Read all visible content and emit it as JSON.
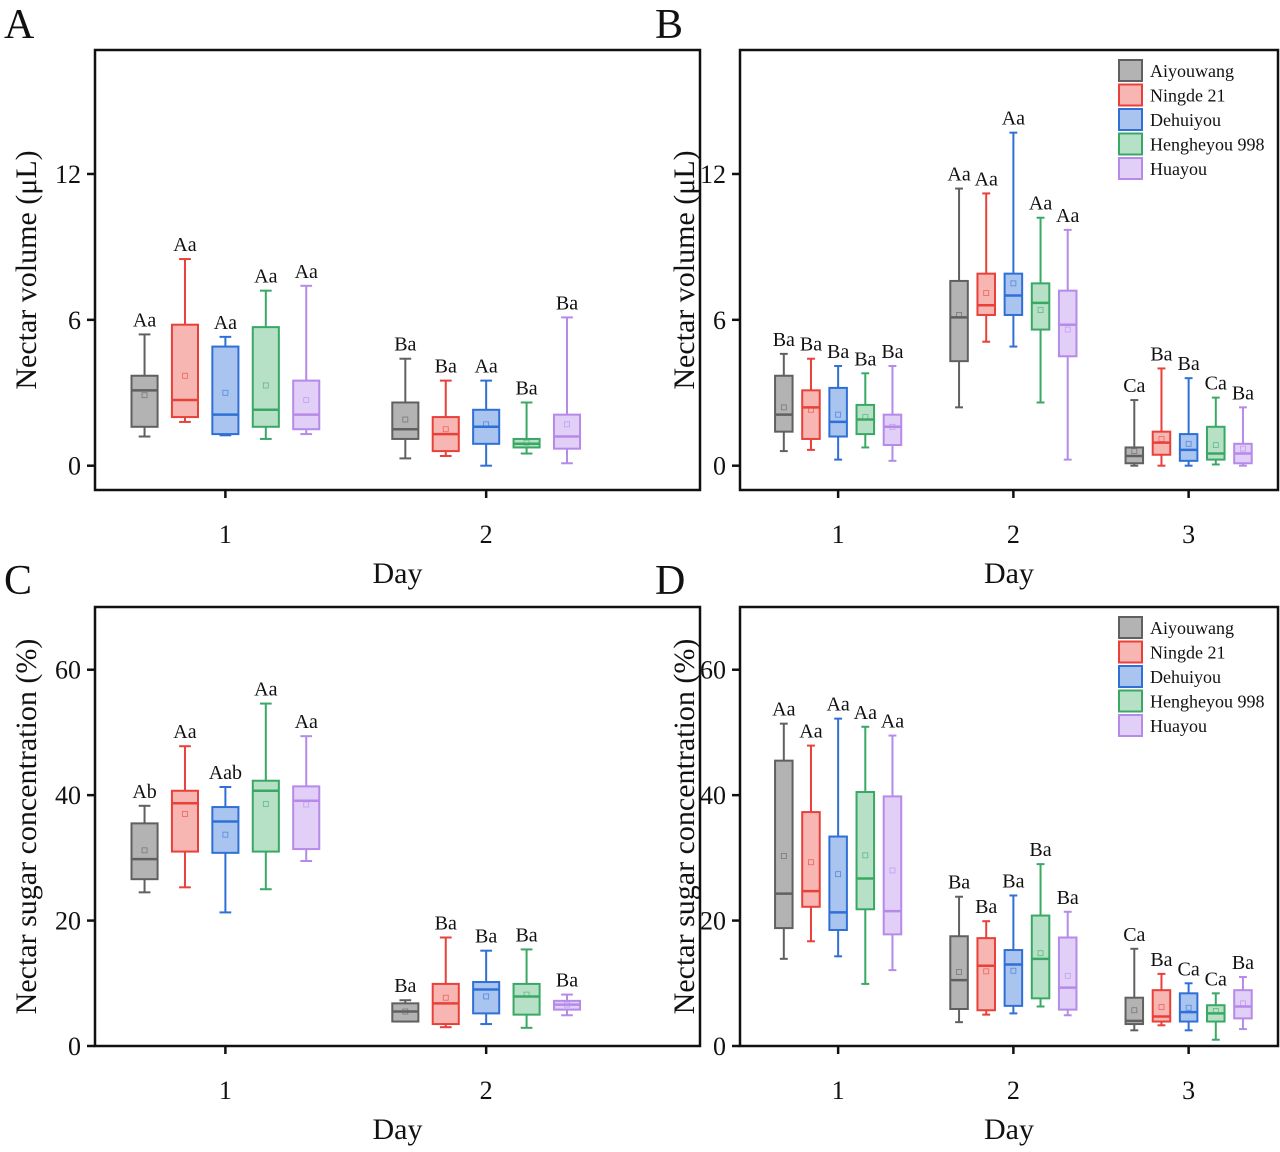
{
  "series_styles": [
    {
      "name": "Aiyouwang",
      "stroke": "#606060",
      "fill": "#b3b3b3"
    },
    {
      "name": "Ningde 21",
      "stroke": "#e8403a",
      "fill": "#f8b6b2"
    },
    {
      "name": "Dehuiyou",
      "stroke": "#2f6fd6",
      "fill": "#a9c5ef"
    },
    {
      "name": "Hengheyou 998",
      "stroke": "#3aa865",
      "fill": "#b7e1c6"
    },
    {
      "name": "Huayou",
      "stroke": "#b58ae8",
      "fill": "#e2cff8"
    }
  ],
  "chart_data": [
    {
      "panel": "A",
      "type": "box",
      "xlabel": "Day",
      "ylabel": "Nectar volume (μL)",
      "categories": [
        "1",
        "2"
      ],
      "xlim": [
        0.5,
        2.82
      ],
      "ylim": [
        -1,
        17.1
      ],
      "yticks": [
        0,
        6,
        12
      ],
      "legend": "none",
      "series": [
        {
          "name": "Aiyouwang",
          "boxes": [
            {
              "min": 1.2,
              "q1": 1.6,
              "median": 3.1,
              "q3": 3.7,
              "max": 5.4,
              "mean": 2.9,
              "letter": "Aa"
            },
            {
              "min": 0.3,
              "q1": 1.1,
              "median": 1.5,
              "q3": 2.6,
              "max": 4.4,
              "mean": 1.9,
              "letter": "Ba"
            }
          ]
        },
        {
          "name": "Ningde 21",
          "boxes": [
            {
              "min": 1.8,
              "q1": 2.0,
              "median": 2.7,
              "q3": 5.8,
              "max": 8.5,
              "mean": 3.7,
              "letter": "Aa"
            },
            {
              "min": 0.4,
              "q1": 0.6,
              "median": 1.3,
              "q3": 2.0,
              "max": 3.5,
              "mean": 1.5,
              "letter": "Ba"
            }
          ]
        },
        {
          "name": "Dehuiyou",
          "boxes": [
            {
              "min": 1.25,
              "q1": 1.3,
              "median": 2.1,
              "q3": 4.9,
              "max": 5.3,
              "mean": 3.0,
              "letter": "Aa"
            },
            {
              "min": 0.0,
              "q1": 0.9,
              "median": 1.6,
              "q3": 2.3,
              "max": 3.5,
              "mean": 1.7,
              "letter": "Aa"
            }
          ]
        },
        {
          "name": "Hengheyou 998",
          "boxes": [
            {
              "min": 1.1,
              "q1": 1.6,
              "median": 2.3,
              "q3": 5.7,
              "max": 7.2,
              "mean": 3.3,
              "letter": "Aa"
            },
            {
              "min": 0.5,
              "q1": 0.75,
              "median": 0.9,
              "q3": 1.1,
              "max": 2.6,
              "mean": 0.95,
              "letter": "Ba"
            }
          ]
        },
        {
          "name": "Huayou",
          "boxes": [
            {
              "min": 1.3,
              "q1": 1.5,
              "median": 2.1,
              "q3": 3.5,
              "max": 7.4,
              "mean": 2.7,
              "letter": "Aa"
            },
            {
              "min": 0.1,
              "q1": 0.7,
              "median": 1.2,
              "q3": 2.1,
              "max": 6.1,
              "mean": 1.7,
              "letter": "Ba"
            }
          ]
        }
      ]
    },
    {
      "panel": "B",
      "type": "box",
      "xlabel": "Day",
      "ylabel": "Nectar volume (μL)",
      "categories": [
        "1",
        "2",
        "3"
      ],
      "xlim": [
        0.44,
        3.51
      ],
      "ylim": [
        -1,
        17.1
      ],
      "yticks": [
        0,
        6,
        12
      ],
      "legend": "top-right",
      "series": [
        {
          "name": "Aiyouwang",
          "boxes": [
            {
              "min": 0.6,
              "q1": 1.4,
              "median": 2.1,
              "q3": 3.7,
              "max": 4.6,
              "mean": 2.4,
              "letter": "Ba"
            },
            {
              "min": 2.4,
              "q1": 4.3,
              "median": 6.1,
              "q3": 7.6,
              "max": 11.4,
              "mean": 6.2,
              "letter": "Aa"
            },
            {
              "min": 0.0,
              "q1": 0.1,
              "median": 0.4,
              "q3": 0.75,
              "max": 2.7,
              "mean": 0.6,
              "letter": "Ca"
            }
          ]
        },
        {
          "name": "Ningde 21",
          "boxes": [
            {
              "min": 0.65,
              "q1": 1.1,
              "median": 2.4,
              "q3": 3.1,
              "max": 4.4,
              "mean": 2.3,
              "letter": "Ba"
            },
            {
              "min": 5.1,
              "q1": 6.2,
              "median": 6.6,
              "q3": 7.9,
              "max": 11.2,
              "mean": 7.1,
              "letter": "Aa"
            },
            {
              "min": 0.0,
              "q1": 0.45,
              "median": 0.95,
              "q3": 1.4,
              "max": 4.0,
              "mean": 1.1,
              "letter": "Ba"
            }
          ]
        },
        {
          "name": "Dehuiyou",
          "boxes": [
            {
              "min": 0.25,
              "q1": 1.2,
              "median": 1.8,
              "q3": 3.2,
              "max": 4.1,
              "mean": 2.1,
              "letter": "Ba"
            },
            {
              "min": 4.9,
              "q1": 6.2,
              "median": 7.0,
              "q3": 7.9,
              "max": 13.7,
              "mean": 7.5,
              "letter": "Aa"
            },
            {
              "min": 0.0,
              "q1": 0.2,
              "median": 0.65,
              "q3": 1.3,
              "max": 3.6,
              "mean": 0.9,
              "letter": "Ba"
            }
          ]
        },
        {
          "name": "Hengheyou 998",
          "boxes": [
            {
              "min": 0.75,
              "q1": 1.3,
              "median": 1.9,
              "q3": 2.5,
              "max": 3.8,
              "mean": 2.0,
              "letter": "Ba"
            },
            {
              "min": 2.6,
              "q1": 5.6,
              "median": 6.7,
              "q3": 7.5,
              "max": 10.2,
              "mean": 6.4,
              "letter": "Aa"
            },
            {
              "min": 0.05,
              "q1": 0.25,
              "median": 0.5,
              "q3": 1.6,
              "max": 2.8,
              "mean": 0.85,
              "letter": "Ca"
            }
          ]
        },
        {
          "name": "Huayou",
          "boxes": [
            {
              "min": 0.2,
              "q1": 0.85,
              "median": 1.6,
              "q3": 2.1,
              "max": 4.1,
              "mean": 1.6,
              "letter": "Ba"
            },
            {
              "min": 0.25,
              "q1": 4.5,
              "median": 5.8,
              "q3": 7.2,
              "max": 9.7,
              "mean": 5.6,
              "letter": "Aa"
            },
            {
              "min": 0.0,
              "q1": 0.1,
              "median": 0.5,
              "q3": 0.9,
              "max": 2.4,
              "mean": 0.7,
              "letter": "Ba"
            }
          ]
        }
      ]
    },
    {
      "panel": "C",
      "type": "box",
      "xlabel": "Day",
      "ylabel": "Nectar sugar concentration (%)",
      "categories": [
        "1",
        "2"
      ],
      "xlim": [
        0.5,
        2.82
      ],
      "ylim": [
        0,
        70
      ],
      "yticks": [
        0,
        20,
        40,
        60
      ],
      "legend": "none",
      "series": [
        {
          "name": "Aiyouwang",
          "boxes": [
            {
              "min": 24.5,
              "q1": 26.6,
              "median": 29.8,
              "q3": 35.5,
              "max": 38.3,
              "mean": 31.2,
              "letter": "Ab"
            },
            {
              "min": 3.9,
              "q1": 3.9,
              "median": 5.5,
              "q3": 6.8,
              "max": 7.3,
              "mean": 5.5,
              "letter": "Ba"
            }
          ]
        },
        {
          "name": "Ningde 21",
          "boxes": [
            {
              "min": 25.3,
              "q1": 31.0,
              "median": 38.7,
              "q3": 40.7,
              "max": 47.8,
              "mean": 37.0,
              "letter": "Aa"
            },
            {
              "min": 3.0,
              "q1": 3.5,
              "median": 6.8,
              "q3": 9.9,
              "max": 17.3,
              "mean": 7.7,
              "letter": "Ba"
            }
          ]
        },
        {
          "name": "Dehuiyou",
          "boxes": [
            {
              "min": 21.3,
              "q1": 30.8,
              "median": 35.8,
              "q3": 38.1,
              "max": 41.3,
              "mean": 33.7,
              "letter": "Aab"
            },
            {
              "min": 3.5,
              "q1": 5.2,
              "median": 9.0,
              "q3": 10.2,
              "max": 15.2,
              "mean": 7.9,
              "letter": "Ba"
            }
          ]
        },
        {
          "name": "Hengheyou 998",
          "boxes": [
            {
              "min": 25.0,
              "q1": 31.0,
              "median": 40.7,
              "q3": 42.3,
              "max": 54.6,
              "mean": 38.6,
              "letter": "Aa"
            },
            {
              "min": 2.9,
              "q1": 5.0,
              "median": 7.9,
              "q3": 9.9,
              "max": 15.4,
              "mean": 8.2,
              "letter": "Ba"
            }
          ]
        },
        {
          "name": "Huayou",
          "boxes": [
            {
              "min": 29.5,
              "q1": 31.4,
              "median": 39.1,
              "q3": 41.4,
              "max": 49.4,
              "mean": 38.5,
              "letter": "Aa"
            },
            {
              "min": 4.9,
              "q1": 5.8,
              "median": 6.6,
              "q3": 7.2,
              "max": 8.2,
              "mean": 6.6,
              "letter": "Ba"
            }
          ]
        }
      ]
    },
    {
      "panel": "D",
      "type": "box",
      "xlabel": "Day",
      "ylabel": "Nectar sugar concentration (%)",
      "categories": [
        "1",
        "2",
        "3"
      ],
      "xlim": [
        0.44,
        3.51
      ],
      "ylim": [
        0,
        70
      ],
      "yticks": [
        0,
        20,
        40,
        60
      ],
      "legend": "top-right",
      "series": [
        {
          "name": "Aiyouwang",
          "boxes": [
            {
              "min": 13.9,
              "q1": 18.8,
              "median": 24.3,
              "q3": 45.5,
              "max": 51.4,
              "mean": 30.3,
              "letter": "Aa"
            },
            {
              "min": 3.8,
              "q1": 5.9,
              "median": 10.5,
              "q3": 17.5,
              "max": 23.8,
              "mean": 11.8,
              "letter": "Ba"
            },
            {
              "min": 2.5,
              "q1": 3.5,
              "median": 4.0,
              "q3": 7.7,
              "max": 15.5,
              "mean": 5.7,
              "letter": "Ca"
            }
          ]
        },
        {
          "name": "Ningde 21",
          "boxes": [
            {
              "min": 16.7,
              "q1": 22.2,
              "median": 24.7,
              "q3": 37.3,
              "max": 47.9,
              "mean": 29.3,
              "letter": "Aa"
            },
            {
              "min": 5.0,
              "q1": 5.7,
              "median": 12.8,
              "q3": 17.2,
              "max": 19.9,
              "mean": 11.9,
              "letter": "Ba"
            },
            {
              "min": 3.3,
              "q1": 3.9,
              "median": 4.7,
              "q3": 8.9,
              "max": 11.5,
              "mean": 6.2,
              "letter": "Ba"
            }
          ]
        },
        {
          "name": "Dehuiyou",
          "boxes": [
            {
              "min": 14.3,
              "q1": 18.5,
              "median": 21.3,
              "q3": 33.4,
              "max": 52.2,
              "mean": 27.4,
              "letter": "Aa"
            },
            {
              "min": 5.2,
              "q1": 6.4,
              "median": 13.0,
              "q3": 15.3,
              "max": 24.0,
              "mean": 12.0,
              "letter": "Ba"
            },
            {
              "min": 2.5,
              "q1": 3.9,
              "median": 5.4,
              "q3": 8.4,
              "max": 10.0,
              "mean": 6.1,
              "letter": "Ca"
            }
          ]
        },
        {
          "name": "Hengheyou 998",
          "boxes": [
            {
              "min": 9.9,
              "q1": 21.8,
              "median": 26.7,
              "q3": 40.5,
              "max": 50.9,
              "mean": 30.4,
              "letter": "Aa"
            },
            {
              "min": 6.3,
              "q1": 7.6,
              "median": 13.9,
              "q3": 20.8,
              "max": 29.0,
              "mean": 14.8,
              "letter": "Ba"
            },
            {
              "min": 1.0,
              "q1": 3.9,
              "median": 5.2,
              "q3": 6.5,
              "max": 8.4,
              "mean": 5.6,
              "letter": "Ca"
            }
          ]
        },
        {
          "name": "Huayou",
          "boxes": [
            {
              "min": 12.1,
              "q1": 17.8,
              "median": 21.5,
              "q3": 39.8,
              "max": 49.5,
              "mean": 28.0,
              "letter": "Aa"
            },
            {
              "min": 4.9,
              "q1": 5.8,
              "median": 9.3,
              "q3": 17.3,
              "max": 21.4,
              "mean": 11.2,
              "letter": "Ba"
            },
            {
              "min": 2.7,
              "q1": 4.4,
              "median": 6.3,
              "q3": 8.9,
              "max": 11.0,
              "mean": 6.8,
              "letter": "Ba"
            }
          ]
        }
      ]
    }
  ]
}
